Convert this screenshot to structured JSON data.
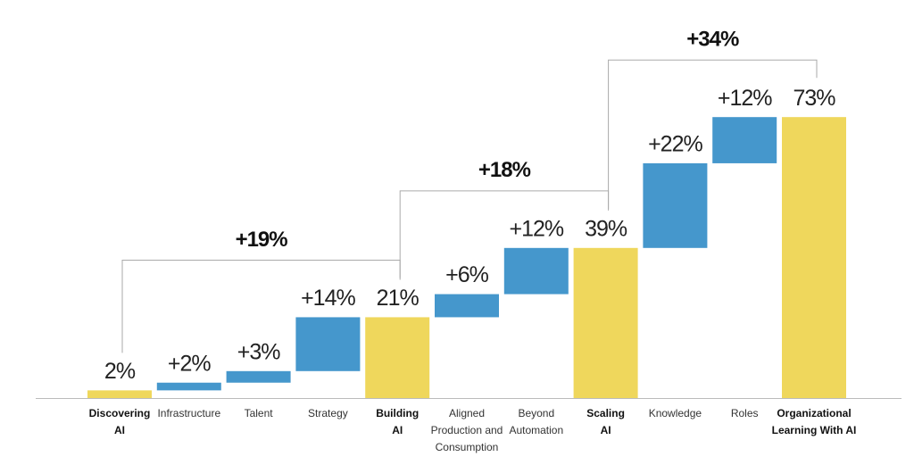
{
  "chart_data": {
    "type": "waterfall",
    "categories": [
      [
        "Discovering",
        "AI"
      ],
      [
        "Infrastructure"
      ],
      [
        "Talent"
      ],
      [
        "Strategy"
      ],
      [
        "Building",
        "AI"
      ],
      [
        "Aligned",
        "Production and",
        "Consumption"
      ],
      [
        "Beyond",
        "Automation"
      ],
      [
        "Scaling",
        "AI"
      ],
      [
        "Knowledge"
      ],
      [
        "Roles"
      ],
      [
        "Organizational",
        "Learning With AI"
      ]
    ],
    "kinds": [
      "total",
      "increase",
      "increase",
      "increase",
      "total",
      "increase",
      "increase",
      "total",
      "increase",
      "increase",
      "total"
    ],
    "values": [
      2,
      2,
      3,
      14,
      21,
      6,
      12,
      39,
      22,
      12,
      73
    ],
    "value_labels": [
      "2%",
      "+2%",
      "+3%",
      "+14%",
      "21%",
      "+6%",
      "+12%",
      "39%",
      "+22%",
      "+12%",
      "73%"
    ],
    "colors": {
      "total": "#efd75c",
      "increase": "#4597cc"
    },
    "brackets": [
      {
        "value": 19,
        "label": "+19%"
      },
      {
        "value": 18,
        "label": "+18%"
      },
      {
        "value": 34,
        "label": "+34%"
      }
    ],
    "ylim": [
      0,
      80
    ]
  }
}
